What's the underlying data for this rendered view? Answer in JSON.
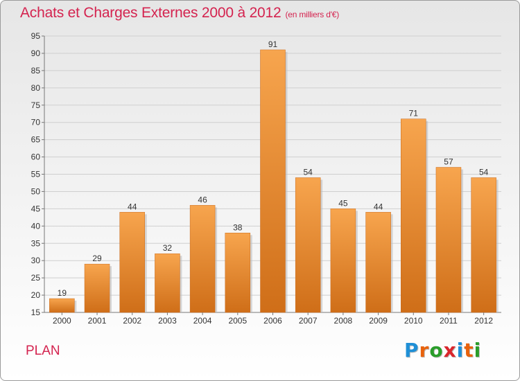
{
  "title": {
    "main": "Achats et Charges Externes 2000 à 2012",
    "unit": "(en milliers d'€)"
  },
  "commune": "PLAN",
  "logo": {
    "letters": [
      "P",
      "r",
      "o",
      "x",
      "i",
      "t",
      "i"
    ],
    "colors": [
      "#1f8fd6",
      "#e8620c",
      "#2a9d2a",
      "#d9262c",
      "#1f8fd6",
      "#e8620c",
      "#2a9d2a"
    ]
  },
  "chart_data": {
    "type": "bar",
    "categories": [
      "2000",
      "2001",
      "2002",
      "2003",
      "2004",
      "2005",
      "2006",
      "2007",
      "2008",
      "2009",
      "2010",
      "2011",
      "2012"
    ],
    "values": [
      19,
      29,
      44,
      32,
      46,
      38,
      91,
      54,
      45,
      44,
      71,
      57,
      54
    ],
    "ylim": [
      15,
      95
    ],
    "yticks": [
      15,
      20,
      25,
      30,
      35,
      40,
      45,
      50,
      55,
      60,
      65,
      70,
      75,
      80,
      85,
      90,
      95
    ],
    "grid": true,
    "data_labels": true,
    "bar_color": "#e8872e"
  }
}
